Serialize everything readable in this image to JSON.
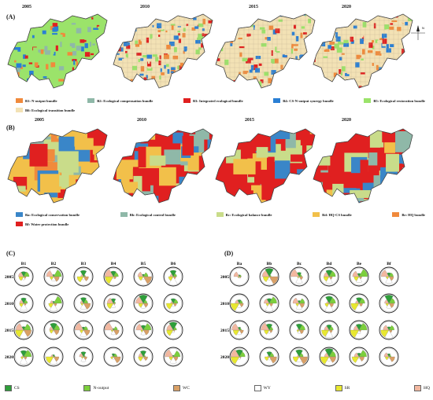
{
  "panelA": {
    "label": "(A)",
    "years": [
      "2005",
      "2010",
      "2015",
      "2020"
    ],
    "legend": [
      {
        "text": "B1: N-output bundle",
        "color": "#f08a3c"
      },
      {
        "text": "B2: Ecological compensation bundle",
        "color": "#8fb8a8"
      },
      {
        "text": "B3: Integrated ecological bundle",
        "color": "#e02020"
      },
      {
        "text": "B4: CS-N-output synergy bundle",
        "color": "#2a7fd4"
      },
      {
        "text": "B5: Ecological restoration bundle",
        "color": "#9be36a"
      },
      {
        "text": "B6: Ecological transition bundle",
        "color": "#f3e2b5"
      }
    ]
  },
  "panelB": {
    "label": "(B)",
    "years": [
      "2005",
      "2010",
      "2015",
      "2020"
    ],
    "legend": [
      {
        "text": "Ba: Ecological conservation bundle",
        "color": "#3a86c8"
      },
      {
        "text": "Bb: Ecological control bundle",
        "color": "#8fb8a8"
      },
      {
        "text": "Bc: Ecological balance bundle",
        "color": "#c9dc8a"
      },
      {
        "text": "Bd: HQ-CS bundle",
        "color": "#f2c04a"
      },
      {
        "text": "Be: HQ bundle",
        "color": "#f08a3c"
      },
      {
        "text": "Bf: Water protection bundle",
        "color": "#e02020"
      }
    ]
  },
  "panelC": {
    "label": "(C)",
    "columns": [
      "B1",
      "B2",
      "B3",
      "B4",
      "B5",
      "B6"
    ],
    "rows": [
      "2005",
      "2010",
      "2015",
      "2020"
    ]
  },
  "panelD": {
    "label": "(D)",
    "columns": [
      "Ba",
      "Bb",
      "Bc",
      "Bd",
      "Be",
      "Bf"
    ],
    "rows": [
      "2005",
      "2010",
      "2015",
      "2020"
    ]
  },
  "services": [
    {
      "name": "CS",
      "color": "#2e9e3a"
    },
    {
      "name": "N-output",
      "color": "#7ccf3c"
    },
    {
      "name": "WC",
      "color": "#d9a066"
    },
    {
      "name": "WY",
      "color": "#ffffff"
    },
    {
      "name": "SR",
      "color": "#e8e830"
    },
    {
      "name": "HQ",
      "color": "#f2b8a0"
    }
  ],
  "north_label": "N"
}
